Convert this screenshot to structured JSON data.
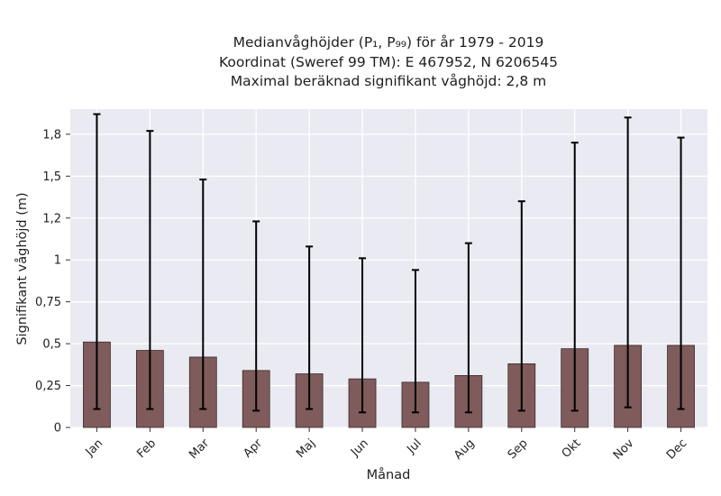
{
  "chart_data": {
    "type": "bar",
    "title_lines": [
      "Medianvåghöjder (P₁, P₉₉) för år 1979 - 2019",
      "Koordinat (Sweref 99 TM): E 467952, N 6206545",
      "Maximal beräknad signifikant våghöjd: 2,8 m"
    ],
    "xlabel": "Månad",
    "ylabel": "Signifikant våghöjd (m)",
    "categories": [
      "Jan",
      "Feb",
      "Mar",
      "Apr",
      "Maj",
      "Jun",
      "Jul",
      "Aug",
      "Sep",
      "Okt",
      "Nov",
      "Dec"
    ],
    "series": [
      {
        "values": [
          0.51,
          0.46,
          0.42,
          0.34,
          0.32,
          0.29,
          0.27,
          0.31,
          0.38,
          0.47,
          0.49,
          0.49
        ],
        "err_low": [
          0.11,
          0.11,
          0.11,
          0.1,
          0.11,
          0.09,
          0.09,
          0.09,
          0.1,
          0.1,
          0.12,
          0.11
        ],
        "err_high": [
          1.87,
          1.77,
          1.48,
          1.23,
          1.08,
          1.01,
          0.94,
          1.1,
          1.35,
          1.7,
          1.85,
          1.73
        ]
      }
    ],
    "yticks": [
      0,
      0.25,
      0.5,
      0.75,
      1,
      1.25,
      1.5,
      1.75
    ],
    "ytick_labels": [
      "0",
      "0,25",
      "0,5",
      "0,75",
      "1",
      "1,2",
      "1,5",
      "1,8"
    ],
    "ylim": [
      0,
      1.9
    ],
    "grid": true,
    "colors": {
      "bar": "#7f5b5c",
      "bar_edge": "#3a2a2b",
      "plot_bg": "#eaeaf2",
      "grid": "#ffffff",
      "errorbar": "#000000"
    }
  }
}
